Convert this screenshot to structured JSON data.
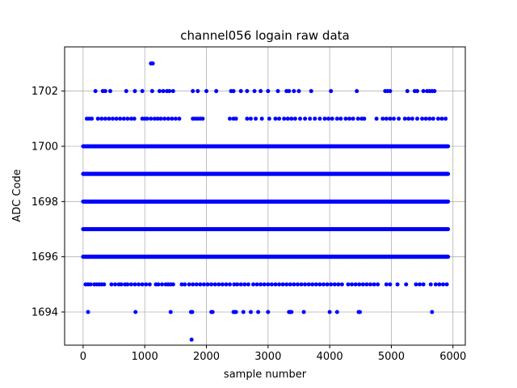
{
  "chart_data": {
    "type": "scatter",
    "title": "channel056 logain raw data",
    "xlabel": "sample number",
    "ylabel": "ADC Code",
    "xlim": [
      -300,
      6200
    ],
    "ylim": [
      1692.8,
      1703.6
    ],
    "xticks": [
      0,
      1000,
      2000,
      3000,
      4000,
      5000,
      6000
    ],
    "yticks": [
      1694,
      1696,
      1698,
      1700,
      1702
    ],
    "grid": true,
    "color": "#0000ff",
    "n_samples": 6000,
    "series": [
      {
        "levels": [
          {
            "y": 1693,
            "x": [
              1760
            ]
          },
          {
            "y": 1694,
            "x": [
              80,
              850,
              1420,
              1750,
              1770,
              2080,
              2100,
              2440,
              2460,
              2480,
              2600,
              2720,
              2840,
              3000,
              3340,
              3360,
              3380,
              3580,
              4000,
              4120,
              4470,
              4490,
              5660
            ]
          },
          {
            "y": 1695,
            "x": [
              40,
              80,
              120,
              180,
              220,
              260,
              300,
              340,
              460,
              520,
              580,
              620,
              680,
              720,
              780,
              840,
              900,
              960,
              1020,
              1080,
              1180,
              1220,
              1280,
              1340,
              1380,
              1420,
              1460,
              1600,
              1650,
              1720,
              1780,
              1840,
              1900,
              1960,
              2020,
              2080,
              2140,
              2200,
              2260,
              2320,
              2380,
              2450,
              2500,
              2560,
              2620,
              2680,
              2760,
              2820,
              2880,
              2940,
              3000,
              3060,
              3120,
              3180,
              3240,
              3300,
              3360,
              3420,
              3480,
              3540,
              3600,
              3660,
              3720,
              3780,
              3840,
              3900,
              3960,
              4020,
              4080,
              4140,
              4200,
              4300,
              4360,
              4420,
              4480,
              4540,
              4600,
              4660,
              4720,
              4780,
              4920,
              4980,
              5100,
              5240,
              5400,
              5460,
              5520,
              5640,
              5720,
              5780,
              5840,
              5900
            ]
          }
        ],
        "dense_levels": [
          1696,
          1697,
          1698,
          1699,
          1700
        ],
        "sparse_levels": [
          {
            "y": 1701,
            "x": [
              60,
              100,
              140,
              240,
              300,
              360,
              420,
              480,
              540,
              600,
              660,
              720,
              780,
              830,
              960,
              1000,
              1040,
              1100,
              1160,
              1210,
              1260,
              1320,
              1380,
              1440,
              1500,
              1560,
              1780,
              1820,
              1860,
              1900,
              1940,
              2380,
              2440,
              2480,
              2660,
              2720,
              2800,
              2900,
              3020,
              3120,
              3180,
              3260,
              3320,
              3380,
              3440,
              3520,
              3600,
              3680,
              3760,
              3840,
              3920,
              3980,
              4040,
              4120,
              4180,
              4260,
              4320,
              4380,
              4460,
              4520,
              4560,
              4760,
              4860,
              4920,
              4980,
              5040,
              5120,
              5220,
              5280,
              5340,
              5420,
              5500,
              5560,
              5620,
              5680,
              5760,
              5820,
              5880
            ]
          },
          {
            "y": 1702,
            "x": [
              200,
              320,
              360,
              440,
              700,
              840,
              960,
              1120,
              1240,
              1300,
              1360,
              1400,
              1460,
              1780,
              1860,
              2000,
              2160,
              2400,
              2440,
              2560,
              2660,
              2780,
              2880,
              3000,
              3160,
              3300,
              3340,
              3420,
              3500,
              3700,
              4020,
              4440,
              4900,
              4940,
              4980,
              5260,
              5380,
              5420,
              5520,
              5580,
              5620,
              5660,
              5700
            ]
          },
          {
            "y": 1703,
            "x": [
              1100,
              1130
            ]
          }
        ]
      }
    ]
  }
}
